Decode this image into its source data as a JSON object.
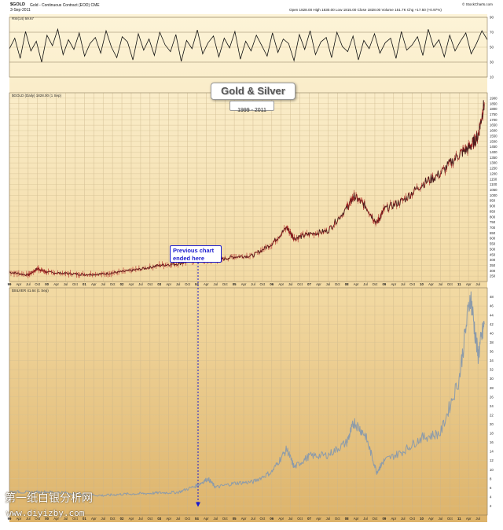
{
  "header": {
    "symbol": "$GOLD",
    "description": "Gold - Continuous Contract (EOD)  CME",
    "date": "3-Sep-2011",
    "quote": "Open 1828.00  High 1830.00  Low 1815.00  Close 1828.00  Volume 151.7K  Chg +17.50 (+0.97%)",
    "source": "© StockCharts.com"
  },
  "title": {
    "main": "Gold & Silver",
    "sub": "1999 - 2011"
  },
  "annotation": {
    "line1": "Previous chart",
    "line2": "ended here"
  },
  "watermark": {
    "cn": "第一纸白银分析网",
    "url": "www.diyizby.com"
  },
  "colors": {
    "bg_top": "#fdf4d8",
    "bg_bottom": "#dfb468",
    "gold_line": "#4a1c1c",
    "gold_candle": "#b02020",
    "silver_line": "#8c9baa",
    "annotation": "#1a1acd",
    "rsi_line": "#111111"
  },
  "chart_data": [
    {
      "type": "line",
      "panel": "rsi",
      "label": "RSI(14) 59.67",
      "ylim": [
        10,
        90
      ],
      "yticks": [
        90,
        70,
        50,
        30,
        10
      ],
      "series": [
        {
          "name": "RSI(14)",
          "values": [
            48,
            62,
            35,
            71,
            45,
            58,
            30,
            66,
            52,
            74,
            40,
            60,
            47,
            69,
            38,
            55,
            63,
            42,
            72,
            50,
            36,
            64,
            57,
            33,
            68,
            46,
            61,
            39,
            70,
            53,
            44,
            67,
            31,
            59,
            48,
            73,
            41,
            56,
            65,
            37,
            62,
            49,
            71,
            34,
            58,
            45,
            66,
            52,
            38,
            69,
            43,
            61,
            55,
            32,
            67,
            47,
            72,
            40,
            57,
            63,
            36,
            70,
            51,
            44,
            65,
            33,
            59,
            48,
            68,
            42,
            56,
            62,
            35,
            71,
            46,
            53,
            64,
            39,
            74,
            50,
            60,
            37,
            66,
            45,
            58,
            69,
            41,
            55,
            72,
            60
          ]
        }
      ]
    },
    {
      "type": "line",
      "panel": "gold",
      "label": "$GOLD (Daily) 1828.00 (1 Sep)",
      "ylim": [
        200,
        1950
      ],
      "yticks": [
        1900,
        1850,
        1800,
        1750,
        1700,
        1650,
        1600,
        1550,
        1500,
        1450,
        1400,
        1350,
        1300,
        1250,
        1200,
        1150,
        1100,
        1050,
        1000,
        950,
        900,
        850,
        800,
        750,
        700,
        650,
        600,
        550,
        500,
        450,
        400,
        350,
        300,
        250
      ],
      "x": [
        1999.0,
        1999.5,
        1999.75,
        2000.0,
        2000.5,
        2001.0,
        2001.5,
        2002.0,
        2002.5,
        2003.0,
        2003.5,
        2004.0,
        2004.5,
        2005.0,
        2005.5,
        2006.0,
        2006.4,
        2006.6,
        2007.0,
        2007.5,
        2008.0,
        2008.2,
        2008.5,
        2008.8,
        2009.0,
        2009.5,
        2010.0,
        2010.5,
        2011.0,
        2011.3,
        2011.5,
        2011.67
      ],
      "series": [
        {
          "name": "$GOLD",
          "values": [
            287,
            260,
            320,
            285,
            275,
            265,
            270,
            290,
            315,
            350,
            365,
            400,
            395,
            430,
            440,
            550,
            700,
            600,
            640,
            670,
            880,
            990,
            900,
            740,
            870,
            950,
            1100,
            1200,
            1380,
            1450,
            1550,
            1850
          ]
        }
      ]
    },
    {
      "type": "line",
      "panel": "silver",
      "label": "$SILVER 41.64 (1 Sep)",
      "ylim": [
        0,
        50
      ],
      "yticks": [
        48,
        46,
        44,
        42,
        40,
        38,
        36,
        34,
        32,
        30,
        28,
        26,
        24,
        22,
        20,
        18,
        16,
        14,
        12,
        10,
        8,
        6,
        4,
        2
      ],
      "x": [
        1999.0,
        1999.5,
        2000.0,
        2000.5,
        2001.0,
        2001.5,
        2002.0,
        2002.5,
        2003.0,
        2003.5,
        2004.0,
        2004.3,
        2004.5,
        2005.0,
        2005.5,
        2006.0,
        2006.4,
        2006.6,
        2007.0,
        2007.5,
        2008.0,
        2008.2,
        2008.5,
        2008.8,
        2009.0,
        2009.5,
        2010.0,
        2010.5,
        2011.0,
        2011.3,
        2011.5,
        2011.67
      ],
      "series": [
        {
          "name": "$SILVER",
          "values": [
            5.2,
            5.0,
            5.1,
            4.9,
            4.5,
            4.3,
            4.6,
            4.7,
            4.9,
            5.0,
            6.5,
            8.0,
            6.1,
            7.0,
            7.3,
            9.5,
            14.5,
            10.5,
            13.0,
            13.2,
            16.0,
            20.5,
            17.5,
            9.5,
            12.0,
            14.0,
            17.0,
            18.0,
            30.0,
            48.5,
            35.0,
            42.0
          ]
        }
      ]
    }
  ],
  "x_axis": {
    "ticks": [
      "99",
      "Apr",
      "Jul",
      "Oct",
      "00",
      "Apr",
      "Jul",
      "Oct",
      "01",
      "Apr",
      "Jul",
      "Oct",
      "02",
      "Apr",
      "Jul",
      "Oct",
      "03",
      "Apr",
      "Jul",
      "Oct",
      "04",
      "Apr",
      "Jul",
      "Oct",
      "05",
      "Apr",
      "Jul",
      "Oct",
      "06",
      "Apr",
      "Jul",
      "Oct",
      "07",
      "Apr",
      "Jul",
      "Oct",
      "08",
      "Apr",
      "Jul",
      "Oct",
      "09",
      "Apr",
      "Jul",
      "Oct",
      "10",
      "Apr",
      "Jul",
      "Oct",
      "11",
      "Apr",
      "Jul"
    ]
  }
}
